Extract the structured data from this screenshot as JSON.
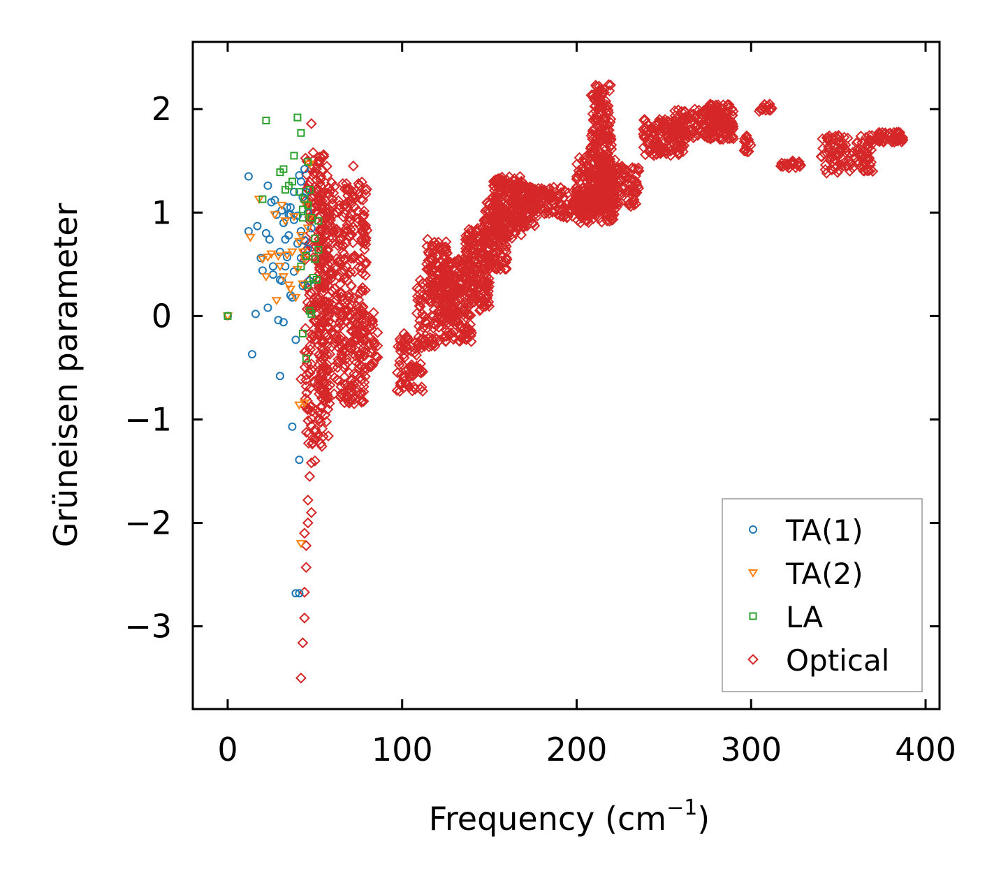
{
  "chart_data": {
    "type": "scatter",
    "title": "",
    "xlabel": "Frequency (cm",
    "xlabel_sup": "−1",
    "xlabel_close": ")",
    "ylabel": "Grüneisen parameter",
    "xlim": [
      -20,
      408
    ],
    "ylim": [
      -3.8,
      2.65
    ],
    "x_ticks": [
      0,
      100,
      200,
      300,
      400
    ],
    "x_tick_labels": [
      "0",
      "100",
      "200",
      "300",
      "400"
    ],
    "y_ticks": [
      2,
      1,
      0,
      -1,
      -2,
      -3
    ],
    "y_tick_labels": [
      "2",
      "1",
      "0",
      "−1",
      "−2",
      "−3"
    ],
    "grid": false,
    "legend_position": "bottom-right",
    "series": [
      {
        "name": "TA(1)",
        "marker": "circle",
        "color": "#1f77b4",
        "points": [
          [
            0,
            0
          ],
          [
            12,
            1.35
          ],
          [
            12,
            0.82
          ],
          [
            14,
            -0.37
          ],
          [
            16,
            0.02
          ],
          [
            17,
            0.87
          ],
          [
            19,
            0.56
          ],
          [
            20,
            0.44
          ],
          [
            22,
            0.8
          ],
          [
            23,
            1.26
          ],
          [
            23,
            0.08
          ],
          [
            24,
            0.74
          ],
          [
            25,
            1.1
          ],
          [
            26,
            0.48
          ],
          [
            26,
            0.4
          ],
          [
            27,
            1.12
          ],
          [
            28,
            0.98
          ],
          [
            29,
            -0.04
          ],
          [
            30,
            0.35
          ],
          [
            30,
            0.62
          ],
          [
            30,
            -0.58
          ],
          [
            31,
            1.02
          ],
          [
            31,
            0.34
          ],
          [
            32,
            -0.06
          ],
          [
            32,
            0.9
          ],
          [
            33,
            0.74
          ],
          [
            33,
            0.48
          ],
          [
            34,
            1.05
          ],
          [
            34,
            0.57
          ],
          [
            35,
            0.98
          ],
          [
            35,
            0.78
          ],
          [
            36,
            0.2
          ],
          [
            36,
            0.98
          ],
          [
            36,
            1.05
          ],
          [
            37,
            0.18
          ],
          [
            37,
            -1.07
          ],
          [
            38,
            0.93
          ],
          [
            38,
            1.2
          ],
          [
            38,
            0.43
          ],
          [
            39,
            -0.23
          ],
          [
            39,
            -2.68
          ],
          [
            40,
            0.97
          ],
          [
            40,
            0.7
          ],
          [
            41,
            1.36
          ],
          [
            41,
            -1.39
          ],
          [
            41,
            -2.68
          ],
          [
            42,
            0.82
          ],
          [
            42,
            1.3
          ],
          [
            42,
            0.56
          ],
          [
            43,
            0.29
          ],
          [
            43,
            1.15
          ],
          [
            44,
            1.42
          ],
          [
            44,
            0.73
          ],
          [
            45,
            1.2
          ],
          [
            46,
            1.0
          ],
          [
            46,
            0.65
          ],
          [
            47,
            0.34
          ],
          [
            48,
            0.85
          ]
        ]
      },
      {
        "name": "TA(2)",
        "marker": "triangle-down",
        "color": "#ff7f0e",
        "points": [
          [
            0,
            0
          ],
          [
            13,
            0.76
          ],
          [
            18,
            1.13
          ],
          [
            20,
            0.55
          ],
          [
            22,
            0.38
          ],
          [
            23,
            0.57
          ],
          [
            25,
            0.6
          ],
          [
            27,
            0.98
          ],
          [
            28,
            0.15
          ],
          [
            29,
            0.58
          ],
          [
            30,
            0.48
          ],
          [
            31,
            1.07
          ],
          [
            32,
            0.38
          ],
          [
            33,
            0.92
          ],
          [
            34,
            0.59
          ],
          [
            35,
            0.3
          ],
          [
            36,
            0.26
          ],
          [
            37,
            0.62
          ],
          [
            38,
            0.96
          ],
          [
            39,
            0.18
          ],
          [
            40,
            0.45
          ],
          [
            41,
            0.72
          ],
          [
            41,
            -0.86
          ],
          [
            42,
            0.78
          ],
          [
            42,
            -2.2
          ],
          [
            43,
            0.31
          ],
          [
            43,
            0.62
          ],
          [
            44,
            -0.84
          ],
          [
            44,
            0.55
          ],
          [
            45,
            1.08
          ],
          [
            46,
            0.85
          ],
          [
            47,
            1.47
          ],
          [
            47,
            0.95
          ]
        ]
      },
      {
        "name": "LA",
        "marker": "square",
        "color": "#2ca02c",
        "points": [
          [
            0,
            0
          ],
          [
            20,
            1.13
          ],
          [
            22,
            1.89
          ],
          [
            30,
            1.39
          ],
          [
            32,
            1.42
          ],
          [
            33,
            1.22
          ],
          [
            35,
            1.26
          ],
          [
            37,
            1.3
          ],
          [
            38,
            1.55
          ],
          [
            40,
            1.92
          ],
          [
            41,
            1.2
          ],
          [
            42,
            1.77
          ],
          [
            42,
            0.48
          ],
          [
            43,
            0.95
          ],
          [
            43,
            1.03
          ],
          [
            43,
            -0.17
          ],
          [
            44,
            1.13
          ],
          [
            45,
            0.58
          ],
          [
            45,
            -0.41
          ],
          [
            46,
            1.49
          ],
          [
            46,
            1.07
          ],
          [
            46,
            0.3
          ],
          [
            47,
            1.22
          ],
          [
            47,
            0.05
          ],
          [
            48,
            0.95
          ],
          [
            48,
            0.02
          ],
          [
            49,
            0.37
          ],
          [
            50,
            0.55
          ],
          [
            50,
            0.75
          ],
          [
            51,
            0.35
          ],
          [
            52,
            0.92
          ],
          [
            52,
            0.64
          ]
        ]
      },
      {
        "name": "Optical",
        "marker": "diamond",
        "color": "#d62728",
        "points": [
          [
            42,
            -3.5
          ],
          [
            43,
            -3.16
          ],
          [
            44,
            -2.92
          ],
          [
            44,
            -2.67
          ],
          [
            45,
            -2.43
          ],
          [
            45,
            -2.22
          ],
          [
            44,
            -2.1
          ],
          [
            46,
            -2.0
          ],
          [
            46,
            -1.78
          ],
          [
            48,
            -1.9
          ],
          [
            47,
            -1.55
          ],
          [
            48,
            -1.42
          ],
          [
            50,
            -1.4
          ],
          [
            50,
            -1.12
          ],
          [
            52,
            -1.15
          ],
          [
            54,
            -1.26
          ],
          [
            42,
            -0.61
          ],
          [
            45,
            -0.68
          ],
          [
            48,
            1.86
          ],
          [
            49,
            1.58
          ],
          [
            52,
            1.5
          ],
          [
            55,
            1.56
          ],
          [
            72,
            1.45
          ],
          [
            75,
            1.28
          ],
          [
            68,
            1.28
          ]
        ],
        "regions": [
          {
            "x_min": 44,
            "x_max": 58,
            "y_min": -1.25,
            "y_max": 1.55,
            "count": 230
          },
          {
            "x_min": 52,
            "x_max": 80,
            "y_min": -0.85,
            "y_max": 1.3,
            "count": 440
          },
          {
            "x_min": 72,
            "x_max": 86,
            "y_min": -0.5,
            "y_max": 0.1,
            "count": 40
          },
          {
            "x_min": 97,
            "x_max": 112,
            "y_min": -0.73,
            "y_max": -0.15,
            "count": 80
          },
          {
            "x_min": 108,
            "x_max": 122,
            "y_min": -0.3,
            "y_max": 0.35,
            "count": 80
          },
          {
            "x_min": 114,
            "x_max": 126,
            "y_min": 0.15,
            "y_max": 0.75,
            "count": 80
          },
          {
            "x_min": 122,
            "x_max": 132,
            "y_min": -0.1,
            "y_max": 0.4,
            "count": 60
          },
          {
            "x_min": 124,
            "x_max": 140,
            "y_min": -0.25,
            "y_max": 0.55,
            "count": 180
          },
          {
            "x_min": 136,
            "x_max": 150,
            "y_min": 0.05,
            "y_max": 0.85,
            "count": 160
          },
          {
            "x_min": 146,
            "x_max": 160,
            "y_min": 0.45,
            "y_max": 1.1,
            "count": 150
          },
          {
            "x_min": 152,
            "x_max": 170,
            "y_min": 0.75,
            "y_max": 1.35,
            "count": 170
          },
          {
            "x_min": 162,
            "x_max": 176,
            "y_min": 0.85,
            "y_max": 1.25,
            "count": 80
          },
          {
            "x_min": 170,
            "x_max": 210,
            "y_min": 0.95,
            "y_max": 1.25,
            "count": 160
          },
          {
            "x_min": 200,
            "x_max": 222,
            "y_min": 0.9,
            "y_max": 1.55,
            "count": 200
          },
          {
            "x_min": 208,
            "x_max": 220,
            "y_min": 1.0,
            "y_max": 2.25,
            "count": 200
          },
          {
            "x_min": 214,
            "x_max": 236,
            "y_min": 1.05,
            "y_max": 1.45,
            "count": 120
          },
          {
            "x_min": 238,
            "x_max": 262,
            "y_min": 1.55,
            "y_max": 1.9,
            "count": 130
          },
          {
            "x_min": 256,
            "x_max": 290,
            "y_min": 1.7,
            "y_max": 2.0,
            "count": 160
          },
          {
            "x_min": 276,
            "x_max": 290,
            "y_min": 1.8,
            "y_max": 2.05,
            "count": 60
          },
          {
            "x_min": 296,
            "x_max": 300,
            "y_min": 1.58,
            "y_max": 1.75,
            "count": 15
          },
          {
            "x_min": 304,
            "x_max": 312,
            "y_min": 1.97,
            "y_max": 2.05,
            "count": 15
          },
          {
            "x_min": 317,
            "x_max": 329,
            "y_min": 1.43,
            "y_max": 1.5,
            "count": 25
          },
          {
            "x_min": 340,
            "x_max": 370,
            "y_min": 1.38,
            "y_max": 1.75,
            "count": 120
          },
          {
            "x_min": 372,
            "x_max": 388,
            "y_min": 1.68,
            "y_max": 1.78,
            "count": 50
          }
        ]
      }
    ]
  }
}
